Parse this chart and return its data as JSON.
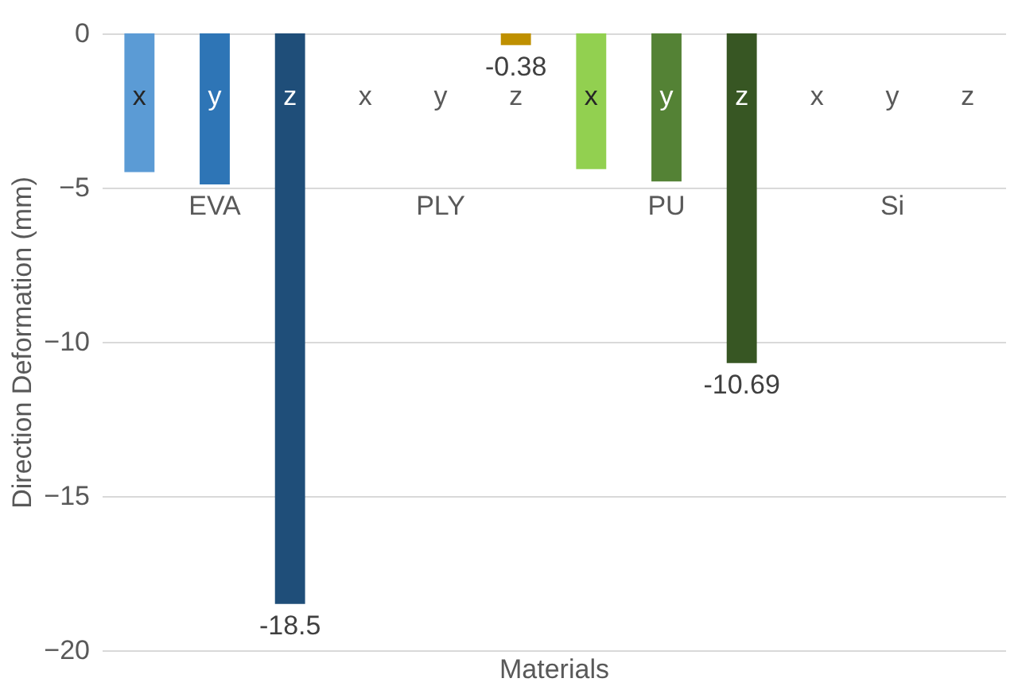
{
  "chart_data": {
    "type": "bar",
    "xlabel": "Materials",
    "ylabel": "Direction Deformation (mm)",
    "categories": [
      "x",
      "y",
      "z",
      "x",
      "y",
      "z",
      "x",
      "y",
      "z",
      "x",
      "y",
      "z"
    ],
    "values": [
      -4.5,
      -4.9,
      -18.5,
      0,
      0,
      -0.38,
      -4.4,
      -4.8,
      -10.69,
      0,
      0,
      0
    ],
    "colors": [
      "#5b9bd5",
      "#2e75b6",
      "#1f4e79",
      "#ffc000",
      "#ffc000",
      "#bf9000",
      "#92d050",
      "#548235",
      "#375623",
      "#a5a5a5",
      "#7f7f7f",
      "#525252"
    ],
    "value_labels": [
      null,
      null,
      "-18.5",
      null,
      null,
      "-0.38",
      null,
      null,
      "-10.69",
      null,
      null,
      null
    ],
    "annotations": [
      "EVA",
      "PLY",
      "PU",
      "Si"
    ],
    "ylim": [
      -20,
      0
    ],
    "yticks": [
      0,
      -5,
      -10,
      -15,
      -20
    ],
    "grid": "y"
  }
}
